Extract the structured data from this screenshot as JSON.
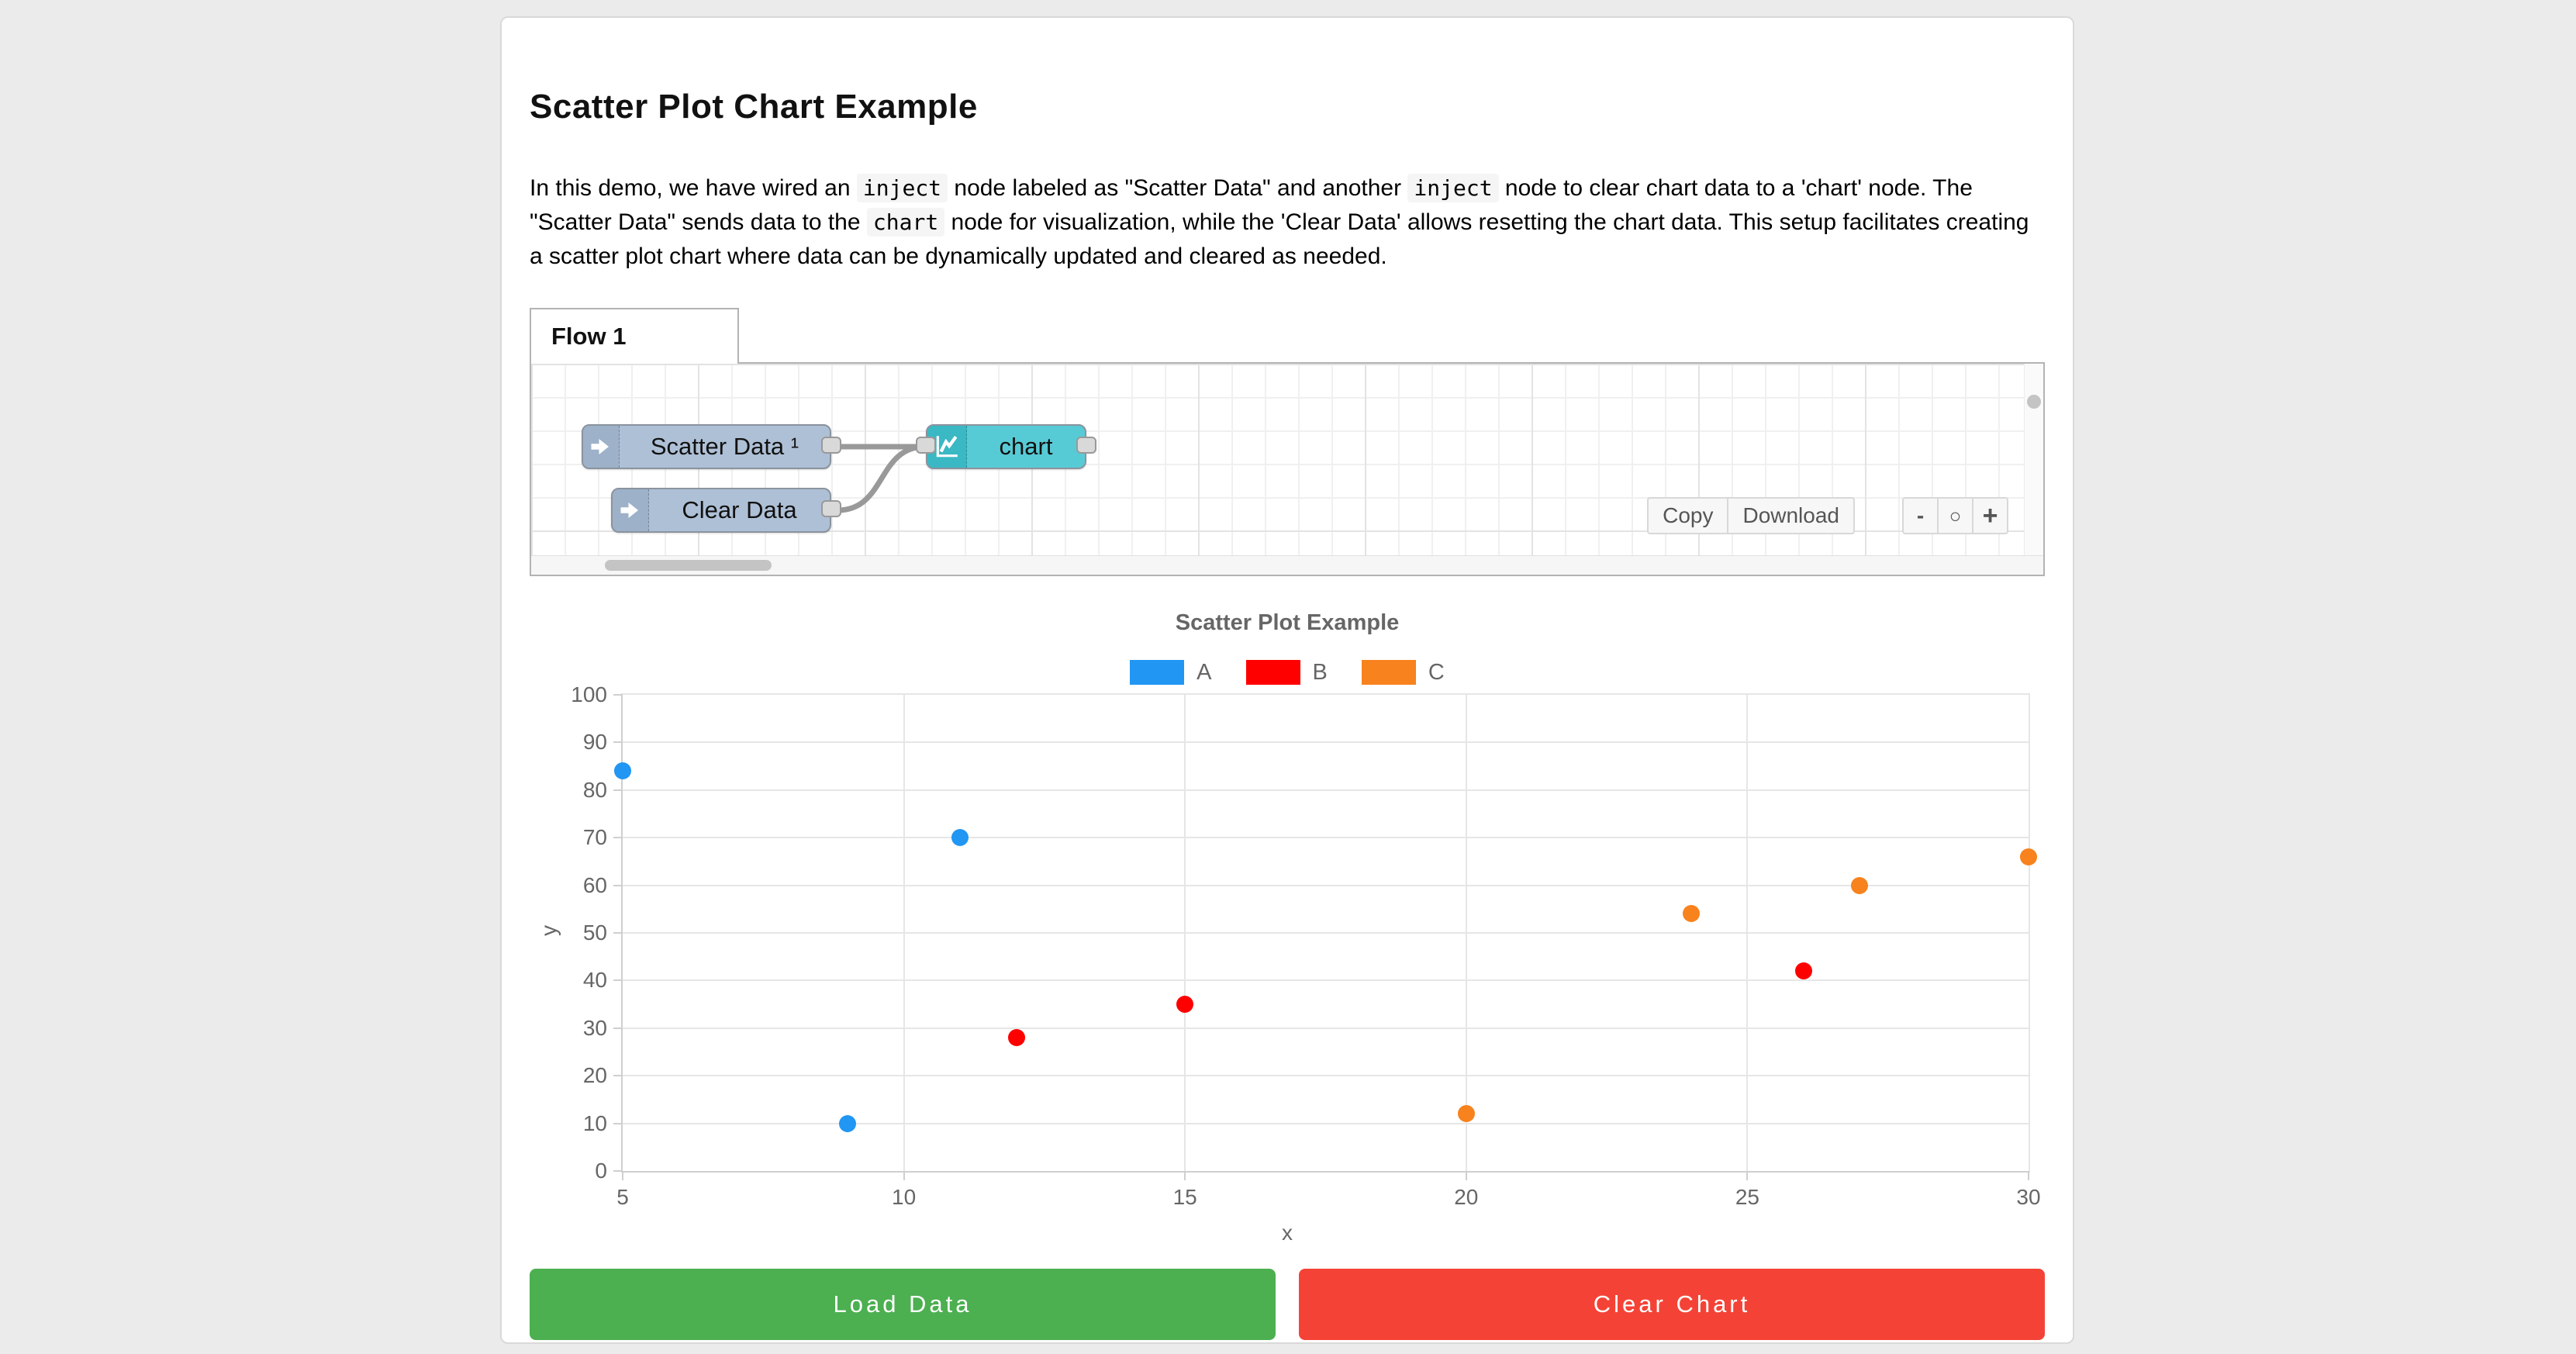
{
  "page": {
    "title": "Scatter Plot Chart Example",
    "description_segments": [
      {
        "t": "text",
        "v": "In this demo, we have wired an "
      },
      {
        "t": "code",
        "v": "inject"
      },
      {
        "t": "text",
        "v": " node labeled as \"Scatter Data\" and another "
      },
      {
        "t": "code",
        "v": "inject"
      },
      {
        "t": "text",
        "v": " node to clear chart data to a 'chart' node. The \"Scatter Data\" sends data to the "
      },
      {
        "t": "code",
        "v": "chart"
      },
      {
        "t": "text",
        "v": " node for visualization, while the 'Clear Data' allows resetting the chart data. This setup facilitates creating a scatter plot chart where data can be dynamically updated and cleared as needed."
      }
    ]
  },
  "flow": {
    "tab_label": "Flow 1",
    "nodes": {
      "scatter": {
        "label": "Scatter Data ¹",
        "type": "inject"
      },
      "clear": {
        "label": "Clear Data",
        "type": "inject"
      },
      "chart": {
        "label": "chart",
        "type": "chart"
      }
    },
    "toolbar": {
      "copy_label": "Copy",
      "download_label": "Download",
      "zoom_out_label": "-",
      "zoom_reset_label": "○",
      "zoom_in_label": "+"
    }
  },
  "chart_data": {
    "type": "scatter",
    "title": "Scatter Plot Example",
    "xlabel": "x",
    "ylabel": "y",
    "xlim": [
      5,
      30
    ],
    "ylim": [
      0,
      100
    ],
    "x_ticks": [
      5,
      10,
      15,
      20,
      25,
      30
    ],
    "y_ticks": [
      0,
      10,
      20,
      30,
      40,
      50,
      60,
      70,
      80,
      90,
      100
    ],
    "grid": true,
    "legend_position": "top",
    "series": [
      {
        "name": "A",
        "color": "#2196F3",
        "points": [
          [
            5,
            84
          ],
          [
            9,
            10
          ],
          [
            11,
            70
          ]
        ]
      },
      {
        "name": "B",
        "color": "#FF0000",
        "points": [
          [
            12,
            28
          ],
          [
            15,
            35
          ],
          [
            26,
            42
          ]
        ]
      },
      {
        "name": "C",
        "color": "#F8821D",
        "points": [
          [
            20,
            12
          ],
          [
            24,
            54
          ],
          [
            27,
            60
          ],
          [
            30,
            66
          ]
        ]
      }
    ]
  },
  "actions": {
    "load_label": "Load Data",
    "load_color": "#4CAF50",
    "clear_label": "Clear Chart",
    "clear_color": "#F44336"
  },
  "colors": {
    "page_background": "#EBEBEB",
    "card_background": "#FFFFFF",
    "inject_node": "#AEC0D6",
    "chart_node": "#57CBD5",
    "wire": "#999999"
  }
}
